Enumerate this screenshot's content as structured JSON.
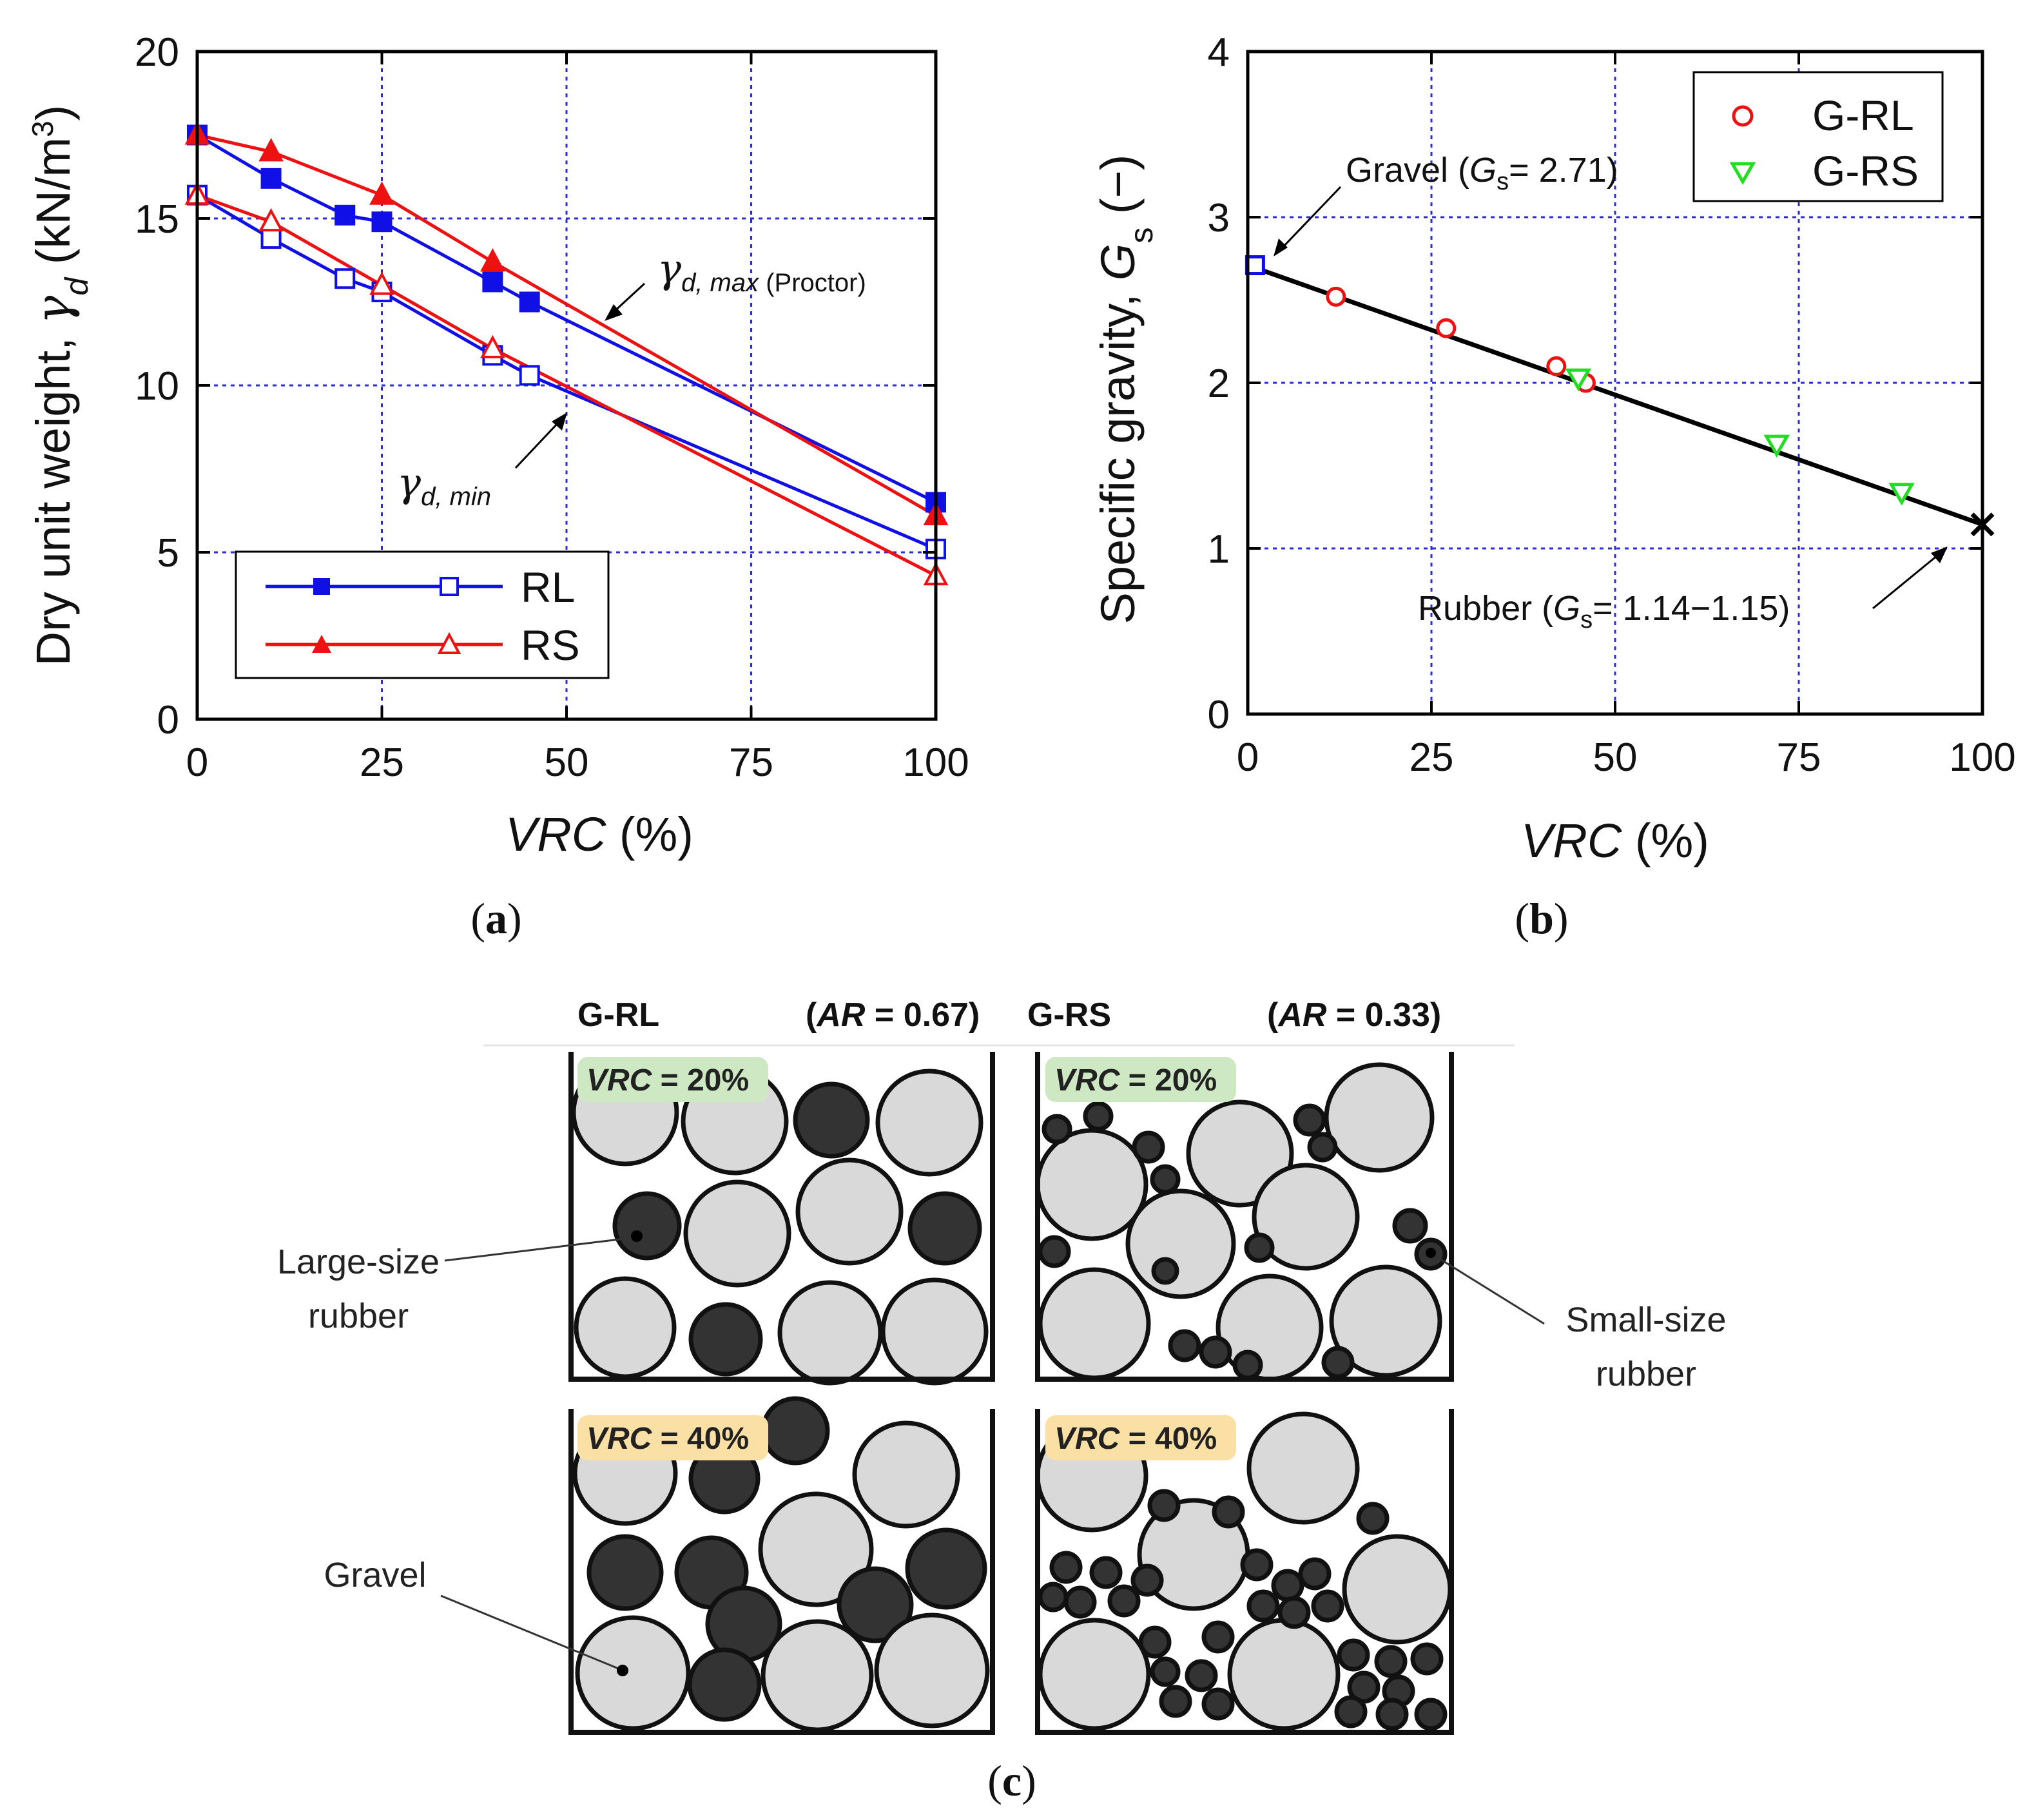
{
  "colors": {
    "rl": "#1010e6",
    "rs": "#ee1111",
    "fit": "#000000",
    "grl": "#ee1111",
    "grs": "#22dd22",
    "grid": "#2a2ae0",
    "gravel": "#d9d9d9",
    "rubber": "#333333",
    "vrc20_bg": "#cfe8c4",
    "vrc40_bg": "#fbe0a6"
  },
  "chart_data": [
    {
      "id": "a",
      "type": "line",
      "panel_label": "a",
      "xlabel": "VRC",
      "xlabel_unit": " (%)",
      "ylabel": "Dry unit weight, ",
      "ylabel_symbol": "γ",
      "ylabel_sub": "d",
      "ylabel_unit": " (kN/m",
      "ylabel_sup": "3",
      "ylabel_close": ")",
      "xlim": [
        0,
        100
      ],
      "ylim": [
        0,
        20
      ],
      "xticks": [
        0,
        25,
        50,
        75,
        100
      ],
      "yticks": [
        0,
        5,
        10,
        15,
        20
      ],
      "grid": true,
      "series": [
        {
          "name": "RL (max)",
          "color": "rl",
          "marker": "square",
          "filled": true,
          "x": [
            0,
            10,
            20,
            25,
            40,
            45,
            100
          ],
          "y": [
            17.5,
            16.2,
            15.1,
            14.9,
            13.1,
            12.5,
            6.5
          ]
        },
        {
          "name": "RL (min)",
          "color": "rl",
          "marker": "square",
          "filled": false,
          "x": [
            0,
            10,
            20,
            25,
            40,
            45,
            100
          ],
          "y": [
            15.7,
            14.4,
            13.2,
            12.8,
            10.9,
            10.3,
            5.1
          ]
        },
        {
          "name": "RS (max)",
          "color": "rs",
          "marker": "triangle",
          "filled": true,
          "x": [
            0,
            10,
            25,
            40,
            100
          ],
          "y": [
            17.5,
            17.0,
            15.7,
            13.7,
            6.1
          ]
        },
        {
          "name": "RS (min)",
          "color": "rs",
          "marker": "triangle",
          "filled": false,
          "x": [
            0,
            10,
            25,
            40,
            100
          ],
          "y": [
            15.7,
            14.9,
            13.0,
            11.1,
            4.3
          ]
        }
      ],
      "legend": {
        "placement": "bottom-left",
        "entries": [
          "RL",
          "RS"
        ]
      },
      "annotations": [
        {
          "symbol": "γ",
          "sub": "d, max",
          "text": " (Proctor)",
          "points_to": [
            57,
            11.9
          ]
        },
        {
          "symbol": "γ",
          "sub": "d, min",
          "text": "",
          "points_to": [
            51,
            9.6
          ]
        }
      ]
    },
    {
      "id": "b",
      "type": "scatter",
      "panel_label": "b",
      "xlabel": "VRC",
      "xlabel_unit": " (%)",
      "ylabel": "Specific gravity, ",
      "ylabel_symbol": "G",
      "ylabel_sub": "s",
      "ylabel_unit": " (−)",
      "xlim": [
        0,
        100
      ],
      "ylim": [
        0,
        4
      ],
      "xticks": [
        0,
        25,
        50,
        75,
        100
      ],
      "yticks": [
        0,
        1,
        2,
        3,
        4
      ],
      "grid": true,
      "fit_line": {
        "x": [
          0,
          100
        ],
        "y": [
          2.71,
          1.145
        ]
      },
      "series": [
        {
          "name": "G-RL",
          "color": "grl",
          "marker": "circle",
          "x": [
            12,
            27,
            42,
            46
          ],
          "y": [
            2.52,
            2.33,
            2.1,
            2.0
          ]
        },
        {
          "name": "G-RS",
          "color": "grs",
          "marker": "triangle-down",
          "x": [
            45,
            72,
            89
          ],
          "y": [
            2.03,
            1.63,
            1.34
          ]
        },
        {
          "name": "Gravel",
          "color": "rl",
          "marker": "square",
          "x": [
            1
          ],
          "y": [
            2.71
          ]
        },
        {
          "name": "Rubber",
          "color": "fit",
          "marker": "x",
          "x": [
            100
          ],
          "y": [
            1.145
          ]
        }
      ],
      "legend": {
        "placement": "top-right",
        "entries": [
          "G-RL",
          "G-RS"
        ]
      },
      "annotations": [
        {
          "label": "Gravel (",
          "symbol": "G",
          "sub": "s",
          "value": "= 2.71)",
          "points_to": [
            1,
            2.71
          ]
        },
        {
          "label": "Rubber (",
          "symbol": "G",
          "sub": "s",
          "value": "= 1.14−1.15)",
          "points_to": [
            99,
            1.0
          ]
        }
      ]
    }
  ],
  "schematic": {
    "panel_label": "c",
    "grl": {
      "title": "G-RL",
      "ar_open": "(",
      "ar_symbol": "AR",
      "ar_value": " = 0.67)"
    },
    "grs": {
      "title": "G-RS",
      "ar_open": "(",
      "ar_symbol": "AR",
      "ar_value": " = 0.33)"
    },
    "vrc_symbol": "VRC",
    "vrc20": " = 20%",
    "vrc40": " = 40%",
    "labels": {
      "large_line1": "Large-size",
      "large_line2": "rubber",
      "small_line1": "Small-size",
      "small_line2": "rubber",
      "gravel": "Gravel"
    }
  }
}
